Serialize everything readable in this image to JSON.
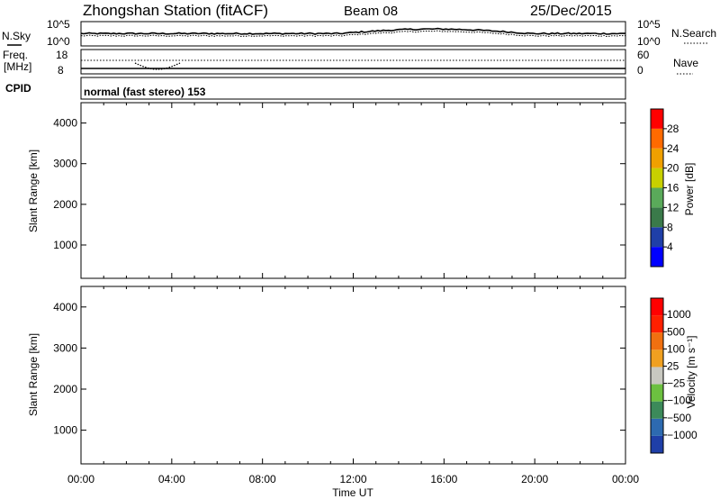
{
  "header": {
    "station": "Zhongshan Station (fitACF)",
    "beam": "Beam 08",
    "date": "25/Dec/2015"
  },
  "noise_panel": {
    "left_label": "N.Sky",
    "right_label": "N.Search",
    "left_ticks": [
      "10^5",
      "10^0"
    ],
    "right_ticks": [
      "10^5",
      "10^0"
    ]
  },
  "freq_panel": {
    "left_label": "Freq.",
    "left_unit": "[MHz]",
    "right_label": "Nave",
    "left_ticks": [
      "18",
      "8"
    ],
    "right_ticks": [
      "60",
      "0"
    ]
  },
  "cpid": {
    "label": "CPID",
    "text": "normal (fast stereo) 153"
  },
  "chart_data": [
    {
      "type": "heatmap",
      "name": "power",
      "ylabel": "Slant Range [km]",
      "xlabel": "",
      "ylim": [
        180,
        4500
      ],
      "xlim": [
        0,
        24
      ],
      "yticks": [
        "4000",
        "3000",
        "2000",
        "1000"
      ],
      "xticks": [
        "00:00",
        "04:00",
        "08:00",
        "12:00",
        "16:00",
        "20:00",
        "00:00"
      ],
      "colorbar": {
        "label": "Power [dB]",
        "ticks": [
          "28",
          "24",
          "20",
          "16",
          "12",
          "8",
          "4"
        ],
        "colors": [
          "#0000ff",
          "#1f3fa8",
          "#3a7a4a",
          "#5aaa5a",
          "#c8d000",
          "#f0a000",
          "#ff6a00",
          "#ff0000"
        ]
      }
    },
    {
      "type": "heatmap",
      "name": "velocity",
      "ylabel": "Slant Range [km]",
      "xlabel": "Time UT",
      "ylim": [
        180,
        4500
      ],
      "xlim": [
        0,
        24
      ],
      "yticks": [
        "4000",
        "3000",
        "2000",
        "1000"
      ],
      "xticks": [
        "00:00",
        "04:00",
        "08:00",
        "12:00",
        "16:00",
        "20:00",
        "00:00"
      ],
      "colorbar": {
        "label": "Velocity [m s⁻¹]",
        "ticks": [
          "1000",
          "500",
          "100",
          "25",
          "−25",
          "−100",
          "−500",
          "−1000"
        ],
        "colors": [
          "#1f3fa8",
          "#2d6ab0",
          "#3c8a5a",
          "#6cc040",
          "#c8c8c0",
          "#f0a020",
          "#f07010",
          "#ff2000",
          "#ff0000"
        ]
      }
    }
  ],
  "colors": {
    "axis": "#000000",
    "background": "#ffffff"
  }
}
